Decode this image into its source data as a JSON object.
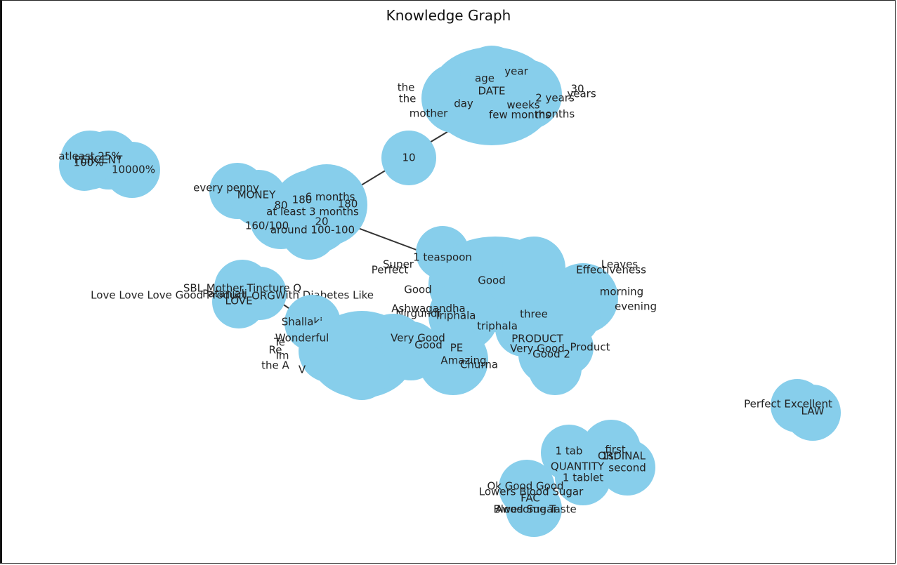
{
  "title": "Knowledge Graph",
  "colors": {
    "node_fill": "#87ceeb",
    "edge": "#333333",
    "label": "#222222",
    "background": "#ffffff"
  },
  "clusters": [
    {
      "id": "percent",
      "labels": [
        "atleast 25%",
        "100%",
        "PERCENT",
        "10000%"
      ]
    },
    {
      "id": "money",
      "labels": [
        "every penny",
        "MONEY",
        "80",
        "180",
        "at least 3 months",
        "160/100",
        "around 100-100",
        "6 months",
        "20",
        "180"
      ]
    },
    {
      "id": "ten",
      "labels": [
        "10"
      ]
    },
    {
      "id": "date",
      "labels": [
        "the",
        "the",
        "years",
        "mother",
        "months",
        "30",
        "DATE",
        "age",
        "year",
        "day",
        "weeks",
        "2 years",
        "few months"
      ]
    },
    {
      "id": "product",
      "labels": [
        "1 teaspoon",
        "Super",
        "Perfect",
        "Good",
        "Leaves",
        "Effectiveness",
        "morning",
        "evening",
        "Ashwagandha",
        "three",
        "triphala",
        "Nirgundi",
        "Triphala",
        "Good"
      ]
    },
    {
      "id": "product-sub",
      "labels": [
        "PRODUCT",
        "Very Good",
        "Product",
        "Good 2"
      ]
    },
    {
      "id": "org",
      "labels": [
        "SBL Mother Tincture Q",
        "Love Love Love Good Product",
        "Patanjali",
        "With Diabetes Like",
        "LOVE",
        "ORG"
      ]
    },
    {
      "id": "shallaki",
      "labels": [
        "Shallaki"
      ]
    },
    {
      "id": "wonderful",
      "labels": [
        "Wonderful",
        "Very Good",
        "Good",
        "Re",
        "Te",
        "Im",
        "the A",
        "V",
        "PE",
        "Churna",
        "Amazing"
      ]
    },
    {
      "id": "law",
      "labels": [
        "Perfect Excellent",
        "LAW"
      ]
    },
    {
      "id": "quantity",
      "labels": [
        "1 tab",
        "first",
        "ORDINAL",
        "second",
        "QUANTITY",
        "1 tablet",
        "1st"
      ]
    },
    {
      "id": "fac",
      "labels": [
        "Ok Good Good",
        "Lowers Blood Sugar",
        "FAC",
        "Awesome Taste",
        "Blood Sugar"
      ]
    }
  ]
}
